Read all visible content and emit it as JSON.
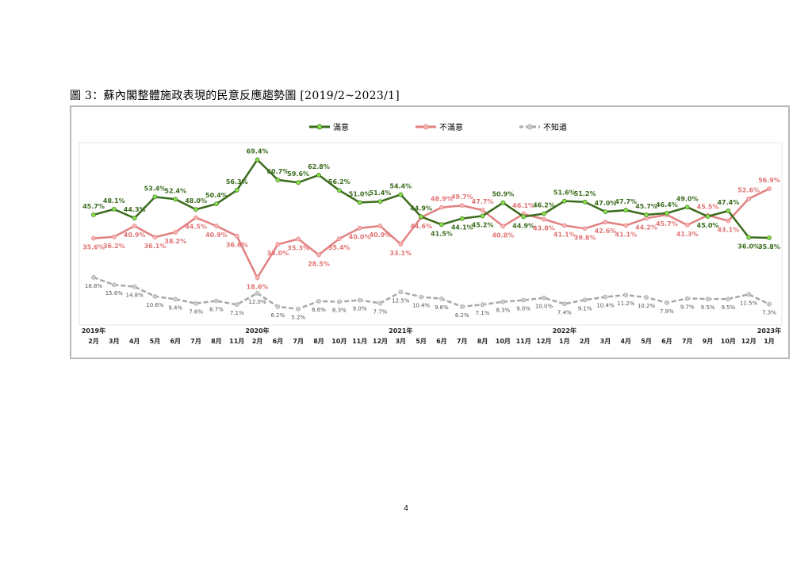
{
  "figure_title": "圖 3：蘇內閣整體施政表現的民意反應趨勢圖 [2019/2~2023/1]",
  "page_number": "4",
  "chart_data": {
    "type": "line",
    "legend_position": "top",
    "grid": false,
    "ylim": [
      0,
      75
    ],
    "year_labels": [
      {
        "index": 0,
        "label": "2019年"
      },
      {
        "index": 8,
        "label": "2020年"
      },
      {
        "index": 15,
        "label": "2021年"
      },
      {
        "index": 23,
        "label": "2022年"
      },
      {
        "index": 33,
        "label": "2023年"
      }
    ],
    "categories": [
      "2月",
      "3月",
      "4月",
      "5月",
      "6月",
      "7月",
      "8月",
      "11月",
      "2月",
      "6月",
      "7月",
      "8月",
      "10月",
      "11月",
      "12月",
      "3月",
      "5月",
      "6月",
      "7月",
      "8月",
      "10月",
      "11月",
      "12月",
      "1月",
      "2月",
      "3月",
      "4月",
      "5月",
      "6月",
      "7月",
      "9月",
      "10月",
      "12月",
      "1月"
    ],
    "series": [
      {
        "name": "滿意",
        "color": "#3a6b1c",
        "marker": "#86e04a",
        "dashed": false,
        "values": [
          45.7,
          48.1,
          44.3,
          53.4,
          52.4,
          48.0,
          50.4,
          56.3,
          69.4,
          60.7,
          59.6,
          62.8,
          56.2,
          51.0,
          51.4,
          54.4,
          44.9,
          41.5,
          44.1,
          45.2,
          50.9,
          44.9,
          46.2,
          51.6,
          51.2,
          47.0,
          47.7,
          45.7,
          46.4,
          49.0,
          45.0,
          47.4,
          36.0,
          35.8
        ],
        "labels": [
          "45.7%",
          "48.1%",
          "44.3%",
          "53.4%",
          "52.4%",
          "48.0%",
          "50.4%",
          "56.3%",
          "69.4%",
          "60.7%",
          "59.6%",
          "62.8%",
          "56.2%",
          "51.0%",
          "51.4%",
          "54.4%",
          "44.9%",
          "41.5%",
          "44.1%",
          "45.2%",
          "50.9%",
          "44.9%",
          "46.2%",
          "51.6%",
          "51.2%",
          "47.0%",
          "47.7%",
          "45.7%",
          "46.4%",
          "49.0%",
          "45.0%",
          "47.4%",
          "36.0%",
          "35.8%"
        ]
      },
      {
        "name": "不滿意",
        "color": "#e28080",
        "marker": "#f5b3b3",
        "dashed": false,
        "values": [
          35.6,
          36.2,
          40.9,
          36.1,
          38.2,
          44.5,
          40.9,
          36.6,
          18.6,
          33.0,
          35.3,
          28.5,
          35.4,
          40.0,
          40.9,
          33.1,
          44.6,
          48.9,
          49.7,
          47.7,
          40.8,
          46.1,
          43.8,
          41.1,
          39.8,
          42.6,
          41.1,
          44.2,
          45.7,
          41.3,
          45.5,
          43.1,
          52.6,
          56.9
        ],
        "labels": [
          "35.6%",
          "36.2%",
          "40.9%",
          "36.1%",
          "38.2%",
          "44.5%",
          "40.9%",
          "36.6%",
          "18.6%",
          "33.0%",
          "35.3%",
          "28.5%",
          "35.4%",
          "40.0%",
          "40.9%",
          "33.1%",
          "44.6%",
          "48.9%",
          "49.7%",
          "47.7%",
          "40.8%",
          "46.1%",
          "43.8%",
          "41.1%",
          "39.8%",
          "42.6%",
          "41.1%",
          "44.2%",
          "45.7%",
          "41.3%",
          "45.5%",
          "43.1%",
          "52.6%",
          "56.9%"
        ]
      },
      {
        "name": "不知道",
        "color": "#a8a8a8",
        "marker": "#cccccc",
        "dashed": true,
        "values": [
          18.8,
          15.6,
          14.8,
          10.6,
          9.4,
          7.6,
          8.7,
          7.1,
          12.0,
          6.2,
          5.2,
          8.6,
          8.3,
          9.0,
          7.7,
          12.5,
          10.4,
          9.6,
          6.2,
          7.1,
          8.3,
          9.0,
          10.0,
          7.4,
          9.1,
          10.4,
          11.2,
          10.2,
          7.9,
          9.7,
          9.5,
          9.5,
          11.5,
          7.3
        ],
        "labels": [
          "18.8%",
          "15.6%",
          "14.8%",
          "10.6%",
          "9.4%",
          "7.6%",
          "8.7%",
          "7.1%",
          "12.0%",
          "6.2%",
          "5.2%",
          "8.6%",
          "8.3%",
          "9.0%",
          "7.7%",
          "12.5%",
          "10.4%",
          "9.6%",
          "6.2%",
          "7.1%",
          "8.3%",
          "9.0%",
          "10.0%",
          "7.4%",
          "9.1%",
          "10.4%",
          "11.2%",
          "10.2%",
          "7.9%",
          "9.7%",
          "9.5%",
          "9.5%",
          "11.5%",
          "7.3%"
        ]
      }
    ]
  }
}
